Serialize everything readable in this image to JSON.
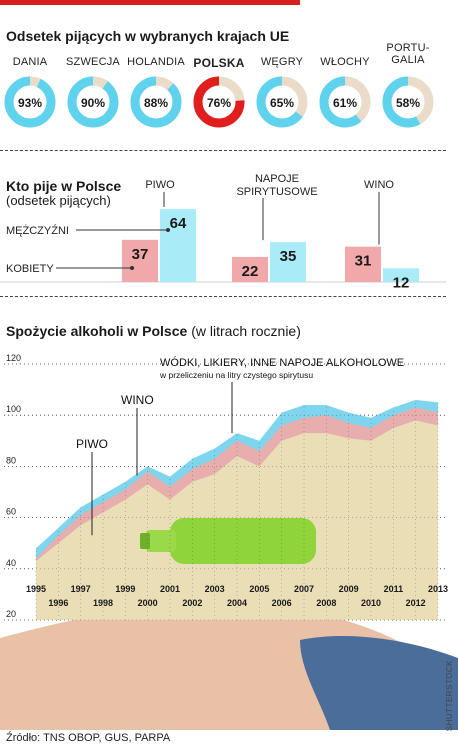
{
  "top_bar_color": "#d92020",
  "section1": {
    "title": "Odsetek pijących w wybranych krajach UE",
    "countries": [
      {
        "name": "DANIA",
        "name2": "",
        "value": 93,
        "label": "93%",
        "highlight": false
      },
      {
        "name": "SZWECJA",
        "name2": "",
        "value": 90,
        "label": "90%",
        "highlight": false
      },
      {
        "name": "HOLANDIA",
        "name2": "",
        "value": 88,
        "label": "88%",
        "highlight": false
      },
      {
        "name": "POLSKA",
        "name2": "",
        "value": 76,
        "label": "76%",
        "highlight": true
      },
      {
        "name": "WĘGRY",
        "name2": "",
        "value": 65,
        "label": "65%",
        "highlight": false
      },
      {
        "name": "WŁOCHY",
        "name2": "",
        "value": 61,
        "label": "61%",
        "highlight": false
      },
      {
        "name": "PORTU-",
        "name2": "GALIA",
        "value": 58,
        "label": "58%",
        "highlight": false
      }
    ],
    "colors": {
      "fill": "#5fd3ee",
      "rest": "#eadcc9",
      "highlight": "#e01e1e"
    }
  },
  "section2": {
    "title": "Kto pije w Polsce",
    "subtitle": "(odsetek pijących)",
    "men_label": "MĘŻCZYŹNI",
    "women_label": "KOBIETY",
    "groups": [
      {
        "name": "PIWO",
        "name2": "",
        "women": 37,
        "men": 64
      },
      {
        "name": "NAPOJE",
        "name2": "SPIRYTUSOWE",
        "women": 22,
        "men": 35
      },
      {
        "name": "WINO",
        "name2": "",
        "women": 31,
        "men": 12
      }
    ],
    "colors": {
      "women": "#f0a8aa",
      "men": "#a9ecf7"
    }
  },
  "section3": {
    "title_bold": "Spożycie alkoholi w Polsce",
    "title_light": "(w litrach rocznie)",
    "label_vodka": "WÓDKI, LIKIERY, INNE NAPOJE ALKOHOLOWE",
    "label_vodka_sub": "w przeliczeniu na litry czystego spirytusu",
    "label_wine": "WINO",
    "label_beer": "PIWO"
  },
  "chart_data": [
    {
      "type": "pie",
      "title": "Odsetek pijących w wybranych krajach UE",
      "categories": [
        "DANIA",
        "SZWECJA",
        "HOLANDIA",
        "POLSKA",
        "WĘGRY",
        "WŁOCHY",
        "PORTUGALIA"
      ],
      "values": [
        93,
        90,
        88,
        76,
        65,
        61,
        58
      ]
    },
    {
      "type": "bar",
      "title": "Kto pije w Polsce",
      "categories": [
        "PIWO",
        "NAPOJE SPIRYTUSOWE",
        "WINO"
      ],
      "series": [
        {
          "name": "KOBIETY",
          "values": [
            37,
            22,
            31
          ]
        },
        {
          "name": "MĘŻCZYŹNI",
          "values": [
            64,
            35,
            12
          ]
        }
      ]
    },
    {
      "type": "area",
      "title": "Spożycie alkoholi w Polsce",
      "x": [
        1995,
        1996,
        1997,
        1998,
        1999,
        2000,
        2001,
        2002,
        2003,
        2004,
        2005,
        2006,
        2007,
        2008,
        2009,
        2010,
        2011,
        2012,
        2013
      ],
      "series": [
        {
          "name": "PIWO",
          "values": [
            43,
            50,
            57,
            62,
            67,
            73,
            67,
            74,
            77,
            84,
            80,
            90,
            93,
            93,
            91,
            90,
            95,
            98,
            96
          ]
        },
        {
          "name": "WINO",
          "values": [
            44,
            53,
            61,
            66,
            71,
            78,
            72,
            79,
            83,
            90,
            86,
            96,
            99,
            100,
            97,
            95,
            100,
            103,
            101
          ]
        },
        {
          "name": "WÓDKI, LIKIERY, INNE NAPOJE ALKOHOLOWE",
          "values": [
            48,
            56,
            64,
            69,
            74,
            80,
            76,
            83,
            87,
            93,
            90,
            101,
            104,
            104,
            101,
            99,
            103,
            106,
            105
          ]
        }
      ],
      "yticks": [
        "20",
        "40",
        "60",
        "80",
        "100",
        "120"
      ],
      "xtick_labels": [
        "1995",
        "1996",
        "1997",
        "1998",
        "1999",
        "2000",
        "2001",
        "2002",
        "2003",
        "2004",
        "2005",
        "2006",
        "2007",
        "2008",
        "2009",
        "2010",
        "2011",
        "2012",
        "2013"
      ],
      "ylim": [
        20,
        120
      ],
      "grid": true,
      "colors": {
        "beer": "#e9e2b8",
        "wine": "#f0aaa8",
        "vodka": "#74d2ec"
      }
    }
  ],
  "footer": {
    "source": "Źródło: TNS OBOP, GUS, PARPA",
    "credit": "SHUTTERSTOCK"
  }
}
